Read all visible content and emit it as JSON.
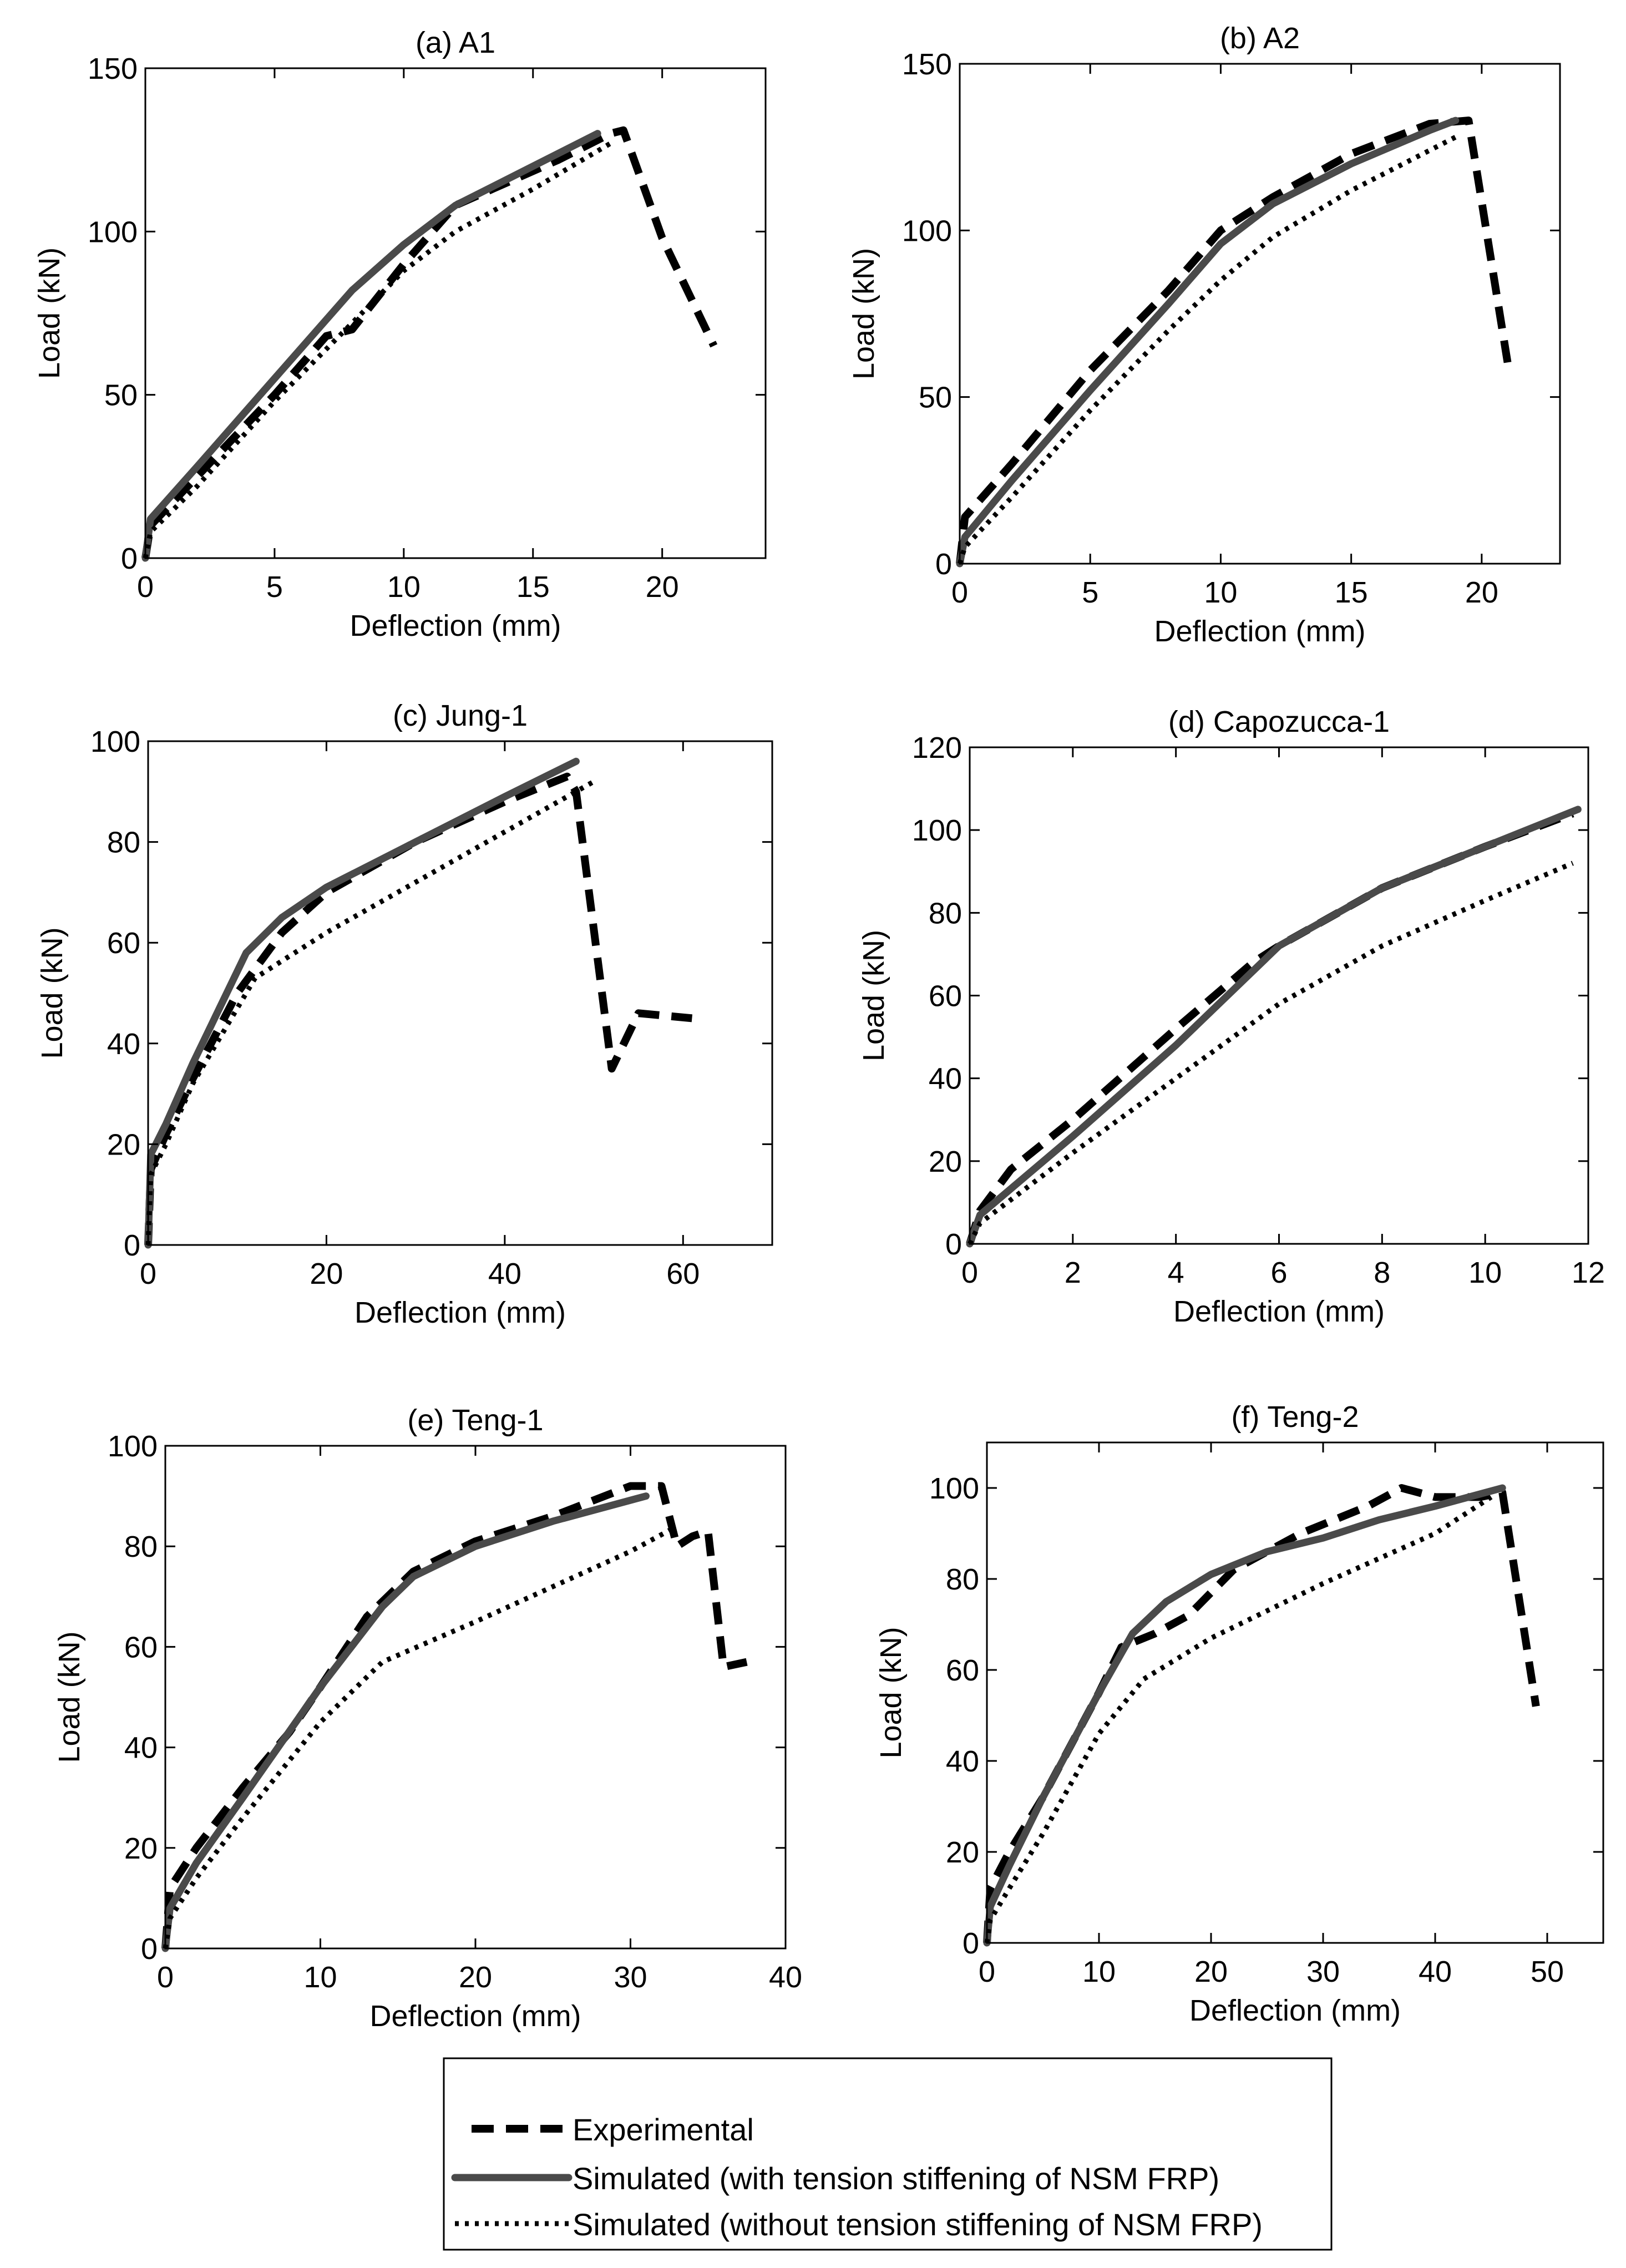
{
  "styles": {
    "experimental": {
      "color": "#000000",
      "dash": "dashed"
    },
    "with_ts": {
      "color": "#4a4a4a",
      "dash": "solid"
    },
    "without_ts": {
      "color": "#000000",
      "dash": "dotted"
    }
  },
  "legend": {
    "items": [
      {
        "key": "experimental",
        "label": "Experimental"
      },
      {
        "key": "with_ts",
        "label": "Simulated (with tension stiffening of NSM FRP)"
      },
      {
        "key": "without_ts",
        "label": "Simulated (without tension stiffening of NSM FRP)"
      }
    ]
  },
  "chart_data": [
    {
      "id": "a",
      "type": "line",
      "title": "(a) A1",
      "xlabel": "Deflection (mm)",
      "ylabel": "Load (kN)",
      "xlim": [
        0,
        24
      ],
      "ylim": [
        0,
        150
      ],
      "xticks": [
        0,
        5,
        10,
        15,
        20
      ],
      "yticks": [
        0,
        50,
        100,
        150
      ],
      "series": [
        {
          "name": "Experimental",
          "key": "experimental",
          "x": [
            0,
            0.2,
            2,
            5,
            7,
            8,
            10,
            12,
            14,
            16,
            18,
            18.5,
            20,
            22
          ],
          "y": [
            0,
            10,
            25,
            50,
            68,
            70,
            90,
            108,
            115,
            122,
            130,
            131,
            98,
            65
          ]
        },
        {
          "name": "Simulated (with tension stiffening of NSM FRP)",
          "key": "with_ts",
          "x": [
            0,
            0.2,
            2,
            5,
            8,
            10,
            12,
            15,
            17.5
          ],
          "y": [
            0,
            12,
            28,
            55,
            82,
            96,
            108,
            120,
            130
          ]
        },
        {
          "name": "Simulated (without tension stiffening of NSM FRP)",
          "key": "without_ts",
          "x": [
            0,
            0.2,
            2,
            5,
            8,
            10,
            12,
            15,
            18
          ],
          "y": [
            0,
            8,
            22,
            48,
            72,
            88,
            100,
            113,
            127
          ]
        }
      ]
    },
    {
      "id": "b",
      "type": "line",
      "title": "(b) A2",
      "xlabel": "Deflection (mm)",
      "ylabel": "Load (kN)",
      "xlim": [
        0,
        23
      ],
      "ylim": [
        0,
        150
      ],
      "xticks": [
        0,
        5,
        10,
        15,
        20
      ],
      "yticks": [
        0,
        50,
        100,
        150
      ],
      "series": [
        {
          "name": "Experimental",
          "key": "experimental",
          "x": [
            0,
            0.2,
            2,
            5,
            8,
            10,
            12,
            15,
            18,
            19.5,
            21
          ],
          "y": [
            0,
            14,
            30,
            58,
            82,
            100,
            110,
            123,
            132,
            133,
            60
          ]
        },
        {
          "name": "Simulated (with tension stiffening of NSM FRP)",
          "key": "with_ts",
          "x": [
            0,
            0.2,
            2,
            5,
            8,
            10,
            12,
            15,
            18,
            19
          ],
          "y": [
            0,
            8,
            25,
            52,
            78,
            96,
            108,
            120,
            130,
            133
          ]
        },
        {
          "name": "Simulated (without tension stiffening of NSM FRP)",
          "key": "without_ts",
          "x": [
            0,
            0.2,
            2,
            5,
            8,
            10,
            12,
            15,
            19
          ],
          "y": [
            0,
            5,
            20,
            46,
            70,
            85,
            98,
            112,
            128
          ]
        }
      ]
    },
    {
      "id": "c",
      "type": "line",
      "title": "(c) Jung-1",
      "xlabel": "Deflection (mm)",
      "ylabel": "Load (kN)",
      "xlim": [
        0,
        70
      ],
      "ylim": [
        0,
        100
      ],
      "xticks": [
        0,
        20,
        40,
        60
      ],
      "yticks": [
        0,
        20,
        40,
        60,
        80,
        100
      ],
      "series": [
        {
          "name": "Experimental",
          "key": "experimental",
          "x": [
            0,
            0.3,
            2,
            5,
            10,
            15,
            20,
            30,
            40,
            47,
            48,
            52,
            55,
            61
          ],
          "y": [
            0,
            15,
            22,
            33,
            50,
            62,
            70,
            80,
            88,
            93,
            90,
            35,
            46,
            45
          ]
        },
        {
          "name": "Simulated (with tension stiffening of NSM FRP)",
          "key": "with_ts",
          "x": [
            0,
            0.3,
            2,
            5,
            11,
            15,
            20,
            30,
            40,
            48
          ],
          "y": [
            0,
            18,
            24,
            36,
            58,
            65,
            71,
            80,
            89,
            96
          ]
        },
        {
          "name": "Simulated (without tension stiffening of NSM FRP)",
          "key": "without_ts",
          "x": [
            0,
            0.3,
            2,
            5,
            12,
            20,
            30,
            40,
            50
          ],
          "y": [
            0,
            14,
            20,
            32,
            53,
            62,
            72,
            82,
            92
          ]
        }
      ]
    },
    {
      "id": "d",
      "type": "line",
      "title": "(d) Capozucca-1",
      "xlabel": "Deflection (mm)",
      "ylabel": "Load (kN)",
      "xlim": [
        0,
        12
      ],
      "ylim": [
        0,
        120
      ],
      "xticks": [
        0,
        2,
        4,
        6,
        8,
        10,
        12
      ],
      "yticks": [
        0,
        20,
        40,
        60,
        80,
        100,
        120
      ],
      "series": [
        {
          "name": "Experimental",
          "key": "experimental",
          "x": [
            0,
            0.2,
            0.8,
            2,
            4,
            5.5,
            6,
            8,
            10,
            11.7
          ],
          "y": [
            0,
            8,
            18,
            30,
            52,
            68,
            72,
            86,
            96,
            104
          ]
        },
        {
          "name": "Simulated (with tension stiffening of NSM FRP)",
          "key": "with_ts",
          "x": [
            0,
            0.2,
            2,
            4,
            6,
            8,
            10,
            11.8
          ],
          "y": [
            0,
            7,
            26,
            48,
            72,
            86,
            96,
            105
          ]
        },
        {
          "name": "Simulated (without tension stiffening of NSM FRP)",
          "key": "without_ts",
          "x": [
            0,
            0.2,
            2,
            4,
            6,
            8,
            10,
            11.7
          ],
          "y": [
            0,
            5,
            22,
            40,
            58,
            72,
            83,
            92
          ]
        }
      ]
    },
    {
      "id": "e",
      "type": "line",
      "title": "(e) Teng-1",
      "xlabel": "Deflection (mm)",
      "ylabel": "Load (kN)",
      "xlim": [
        0,
        40
      ],
      "ylim": [
        0,
        100
      ],
      "xticks": [
        0,
        10,
        20,
        30,
        40
      ],
      "yticks": [
        0,
        20,
        40,
        60,
        80,
        100
      ],
      "series": [
        {
          "name": "Experimental",
          "key": "experimental",
          "x": [
            0,
            0.3,
            2,
            5,
            8,
            10,
            13,
            16,
            20,
            25,
            30,
            32,
            33,
            34,
            35,
            36,
            37.5
          ],
          "y": [
            0,
            12,
            20,
            32,
            43,
            52,
            66,
            75,
            81,
            86,
            92,
            92,
            80,
            82,
            83,
            56,
            57
          ]
        },
        {
          "name": "Simulated (with tension stiffening of NSM FRP)",
          "key": "with_ts",
          "x": [
            0,
            0.3,
            2,
            5,
            10,
            14,
            16,
            20,
            25,
            31
          ],
          "y": [
            0,
            8,
            17,
            30,
            52,
            68,
            74,
            80,
            85,
            90
          ]
        },
        {
          "name": "Simulated (without tension stiffening of NSM FRP)",
          "key": "without_ts",
          "x": [
            0,
            0.3,
            2,
            5,
            10,
            14,
            20,
            25,
            30,
            33
          ],
          "y": [
            0,
            6,
            14,
            26,
            45,
            57,
            65,
            72,
            79,
            84
          ]
        }
      ]
    },
    {
      "id": "f",
      "type": "line",
      "title": "(f) Teng-2",
      "xlabel": "Deflection (mm)",
      "ylabel": "Load (kN)",
      "xlim": [
        0,
        55
      ],
      "ylim": [
        0,
        110
      ],
      "xticks": [
        0,
        10,
        20,
        30,
        40,
        50
      ],
      "yticks": [
        0,
        20,
        40,
        60,
        80,
        100
      ],
      "series": [
        {
          "name": "Experimental",
          "key": "experimental",
          "x": [
            0,
            0.3,
            2,
            5,
            10,
            12,
            15,
            18,
            22,
            28,
            34,
            37,
            40,
            44,
            46,
            49
          ],
          "y": [
            0,
            12,
            20,
            32,
            55,
            65,
            68,
            72,
            82,
            90,
            96,
            100,
            98,
            98,
            99,
            52
          ]
        },
        {
          "name": "Simulated (with tension stiffening of NSM FRP)",
          "key": "with_ts",
          "x": [
            0,
            0.3,
            2,
            5,
            10,
            13,
            16,
            20,
            25,
            30,
            35,
            40,
            46
          ],
          "y": [
            0,
            8,
            17,
            32,
            55,
            68,
            75,
            81,
            86,
            89,
            93,
            96,
            100
          ]
        },
        {
          "name": "Simulated (without tension stiffening of NSM FRP)",
          "key": "without_ts",
          "x": [
            0,
            0.3,
            2,
            5,
            10,
            14,
            20,
            30,
            40,
            45
          ],
          "y": [
            0,
            5,
            12,
            24,
            46,
            58,
            67,
            79,
            90,
            98
          ]
        }
      ]
    }
  ]
}
